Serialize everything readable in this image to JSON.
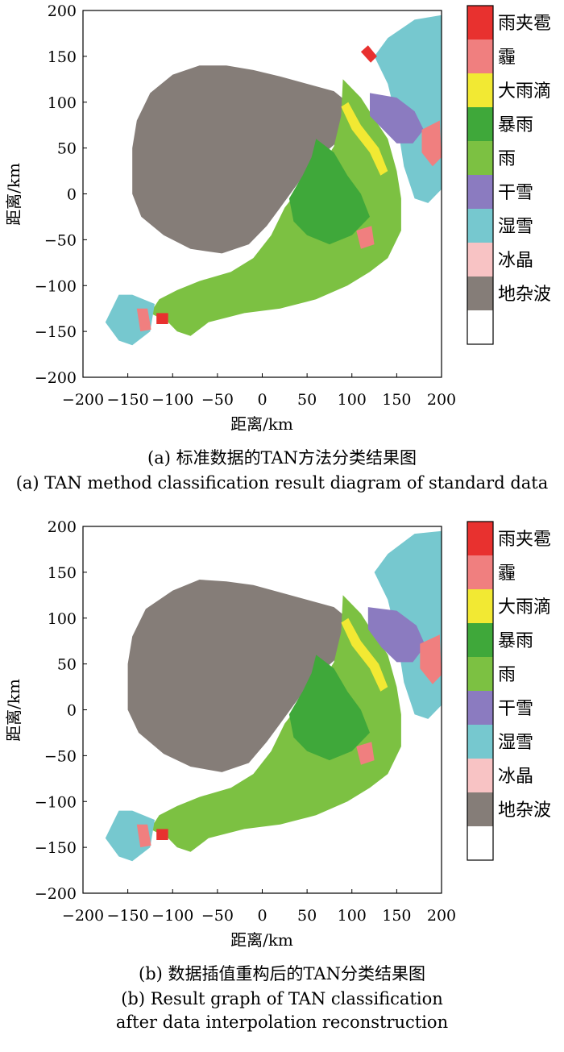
{
  "legend": {
    "items": [
      {
        "label": "雨夹雹",
        "color": "#e8312f"
      },
      {
        "label": "霾",
        "color": "#f07f7f"
      },
      {
        "label": "大雨滴",
        "color": "#f2e933"
      },
      {
        "label": "暴雨",
        "color": "#3fa83a"
      },
      {
        "label": "雨",
        "color": "#7cc142"
      },
      {
        "label": "干雪",
        "color": "#8b7bc0"
      },
      {
        "label": "湿雪",
        "color": "#76c8cf"
      },
      {
        "label": "冰晶",
        "color": "#f8c3c4"
      },
      {
        "label": "地杂波",
        "color": "#857d78"
      },
      {
        "label": "",
        "color": "#ffffff"
      }
    ]
  },
  "chart_data": [
    {
      "type": "heatmap",
      "panel": "a",
      "title": "",
      "xlabel": "距离/km",
      "ylabel": "距离/km",
      "xlim": [
        -200,
        200
      ],
      "ylim": [
        -200,
        200
      ],
      "xticks": [
        "−200",
        "−150",
        "−100",
        "−50",
        "0",
        "50",
        "100",
        "150",
        "200"
      ],
      "yticks": [
        "200",
        "150",
        "100",
        "50",
        "0",
        "−50",
        "−100",
        "−150",
        "−200"
      ],
      "regions": [
        {
          "class": "地杂波",
          "polygon": [
            [
              -145,
              50
            ],
            [
              -140,
              80
            ],
            [
              -125,
              110
            ],
            [
              -100,
              130
            ],
            [
              -70,
              140
            ],
            [
              -40,
              140
            ],
            [
              -10,
              135
            ],
            [
              20,
              128
            ],
            [
              50,
              120
            ],
            [
              80,
              112
            ],
            [
              95,
              100
            ],
            [
              100,
              85
            ],
            [
              90,
              62
            ],
            [
              70,
              45
            ],
            [
              50,
              25
            ],
            [
              35,
              5
            ],
            [
              20,
              -15
            ],
            [
              5,
              -35
            ],
            [
              -15,
              -55
            ],
            [
              -45,
              -65
            ],
            [
              -80,
              -60
            ],
            [
              -110,
              -45
            ],
            [
              -135,
              -25
            ],
            [
              -145,
              0
            ]
          ]
        },
        {
          "class": "雨",
          "polygon": [
            [
              90,
              125
            ],
            [
              110,
              105
            ],
            [
              125,
              82
            ],
            [
              140,
              60
            ],
            [
              150,
              25
            ],
            [
              155,
              -5
            ],
            [
              155,
              -40
            ],
            [
              140,
              -70
            ],
            [
              120,
              -85
            ],
            [
              95,
              -100
            ],
            [
              60,
              -115
            ],
            [
              20,
              -125
            ],
            [
              -20,
              -130
            ],
            [
              -60,
              -140
            ],
            [
              -80,
              -155
            ],
            [
              -95,
              -150
            ],
            [
              -105,
              -140
            ],
            [
              -125,
              -130
            ],
            [
              -115,
              -115
            ],
            [
              -95,
              -105
            ],
            [
              -70,
              -95
            ],
            [
              -35,
              -85
            ],
            [
              -10,
              -70
            ],
            [
              10,
              -45
            ],
            [
              25,
              -15
            ],
            [
              45,
              10
            ],
            [
              65,
              28
            ],
            [
              80,
              52
            ],
            [
              88,
              85
            ]
          ]
        },
        {
          "class": "暴雨",
          "polygon": [
            [
              60,
              60
            ],
            [
              80,
              45
            ],
            [
              95,
              20
            ],
            [
              110,
              0
            ],
            [
              120,
              -25
            ],
            [
              100,
              -45
            ],
            [
              75,
              -55
            ],
            [
              50,
              -45
            ],
            [
              35,
              -30
            ],
            [
              30,
              -5
            ],
            [
              45,
              20
            ],
            [
              55,
              40
            ]
          ]
        },
        {
          "class": "湿雪",
          "polygon": [
            [
              140,
              170
            ],
            [
              170,
              190
            ],
            [
              200,
              195
            ],
            [
              200,
              5
            ],
            [
              185,
              -10
            ],
            [
              170,
              -5
            ],
            [
              158,
              30
            ],
            [
              150,
              80
            ],
            [
              140,
              120
            ],
            [
              125,
              150
            ]
          ]
        },
        {
          "class": "干雪",
          "polygon": [
            [
              120,
              110
            ],
            [
              150,
              105
            ],
            [
              170,
              90
            ],
            [
              180,
              70
            ],
            [
              168,
              55
            ],
            [
              150,
              55
            ],
            [
              135,
              70
            ],
            [
              120,
              85
            ]
          ]
        },
        {
          "class": "霾",
          "polygon": [
            [
              178,
              70
            ],
            [
              198,
              80
            ],
            [
              200,
              40
            ],
            [
              190,
              30
            ],
            [
              178,
              45
            ]
          ]
        },
        {
          "class": "大雨滴",
          "polygon": [
            [
              88,
              95
            ],
            [
              96,
              100
            ],
            [
              110,
              75
            ],
            [
              130,
              50
            ],
            [
              140,
              25
            ],
            [
              132,
              20
            ],
            [
              120,
              45
            ],
            [
              100,
              70
            ]
          ]
        },
        {
          "class": "雨夹雹",
          "polygon": [
            [
              110,
              155
            ],
            [
              118,
              162
            ],
            [
              128,
              150
            ],
            [
              121,
              143
            ]
          ]
        },
        {
          "class": "湿雪",
          "polygon": [
            [
              -175,
              -140
            ],
            [
              -160,
              -110
            ],
            [
              -145,
              -110
            ],
            [
              -120,
              -120
            ],
            [
              -125,
              -150
            ],
            [
              -145,
              -165
            ],
            [
              -160,
              -160
            ]
          ]
        },
        {
          "class": "霾",
          "polygon": [
            [
              -140,
              -125
            ],
            [
              -128,
              -125
            ],
            [
              -124,
              -148
            ],
            [
              -136,
              -150
            ]
          ]
        },
        {
          "class": "雨夹雹",
          "polygon": [
            [
              -118,
              -130
            ],
            [
              -105,
              -130
            ],
            [
              -105,
              -142
            ],
            [
              -118,
              -142
            ]
          ]
        },
        {
          "class": "霾",
          "polygon": [
            [
              105,
              -40
            ],
            [
              122,
              -35
            ],
            [
              125,
              -55
            ],
            [
              110,
              -60
            ]
          ]
        }
      ]
    },
    {
      "type": "heatmap",
      "panel": "b",
      "title": "",
      "xlabel": "距离/km",
      "ylabel": "距离/km",
      "xlim": [
        -200,
        200
      ],
      "ylim": [
        -200,
        200
      ],
      "xticks": [
        "−200",
        "−150",
        "−100",
        "−50",
        "0",
        "50",
        "100",
        "150",
        "200"
      ],
      "yticks": [
        "200",
        "150",
        "100",
        "50",
        "0",
        "−50",
        "−100",
        "−150",
        "−200"
      ],
      "regions": [
        {
          "class": "地杂波",
          "polygon": [
            [
              -150,
              50
            ],
            [
              -145,
              80
            ],
            [
              -130,
              110
            ],
            [
              -100,
              130
            ],
            [
              -70,
              142
            ],
            [
              -40,
              140
            ],
            [
              -10,
              136
            ],
            [
              20,
              128
            ],
            [
              50,
              120
            ],
            [
              80,
              112
            ],
            [
              95,
              100
            ],
            [
              100,
              85
            ],
            [
              90,
              62
            ],
            [
              70,
              45
            ],
            [
              50,
              25
            ],
            [
              35,
              5
            ],
            [
              20,
              -15
            ],
            [
              5,
              -35
            ],
            [
              -15,
              -58
            ],
            [
              -45,
              -68
            ],
            [
              -80,
              -62
            ],
            [
              -110,
              -48
            ],
            [
              -138,
              -25
            ],
            [
              -150,
              0
            ]
          ]
        },
        {
          "class": "雨",
          "polygon": [
            [
              90,
              125
            ],
            [
              110,
              105
            ],
            [
              125,
              82
            ],
            [
              140,
              60
            ],
            [
              150,
              25
            ],
            [
              155,
              -5
            ],
            [
              155,
              -40
            ],
            [
              140,
              -70
            ],
            [
              120,
              -85
            ],
            [
              95,
              -100
            ],
            [
              60,
              -115
            ],
            [
              20,
              -125
            ],
            [
              -20,
              -130
            ],
            [
              -60,
              -140
            ],
            [
              -80,
              -155
            ],
            [
              -95,
              -150
            ],
            [
              -105,
              -140
            ],
            [
              -125,
              -130
            ],
            [
              -115,
              -115
            ],
            [
              -95,
              -105
            ],
            [
              -70,
              -95
            ],
            [
              -35,
              -85
            ],
            [
              -10,
              -70
            ],
            [
              10,
              -45
            ],
            [
              25,
              -15
            ],
            [
              45,
              10
            ],
            [
              65,
              28
            ],
            [
              80,
              52
            ],
            [
              88,
              85
            ]
          ]
        },
        {
          "class": "暴雨",
          "polygon": [
            [
              60,
              60
            ],
            [
              80,
              45
            ],
            [
              95,
              20
            ],
            [
              110,
              0
            ],
            [
              120,
              -25
            ],
            [
              100,
              -45
            ],
            [
              75,
              -55
            ],
            [
              50,
              -45
            ],
            [
              35,
              -30
            ],
            [
              30,
              -5
            ],
            [
              45,
              20
            ],
            [
              55,
              40
            ]
          ]
        },
        {
          "class": "湿雪",
          "polygon": [
            [
              140,
              170
            ],
            [
              170,
              192
            ],
            [
              200,
              195
            ],
            [
              200,
              5
            ],
            [
              185,
              -10
            ],
            [
              170,
              -5
            ],
            [
              158,
              30
            ],
            [
              150,
              80
            ],
            [
              140,
              120
            ],
            [
              125,
              150
            ]
          ]
        },
        {
          "class": "干雪",
          "polygon": [
            [
              118,
              112
            ],
            [
              150,
              108
            ],
            [
              172,
              92
            ],
            [
              182,
              70
            ],
            [
              168,
              52
            ],
            [
              150,
              52
            ],
            [
              133,
              68
            ],
            [
              118,
              88
            ]
          ]
        },
        {
          "class": "霾",
          "polygon": [
            [
              176,
              72
            ],
            [
              198,
              82
            ],
            [
              200,
              38
            ],
            [
              190,
              28
            ],
            [
              176,
              45
            ]
          ]
        },
        {
          "class": "大雨滴",
          "polygon": [
            [
              88,
              95
            ],
            [
              96,
              100
            ],
            [
              110,
              75
            ],
            [
              130,
              50
            ],
            [
              140,
              25
            ],
            [
              132,
              20
            ],
            [
              120,
              45
            ],
            [
              100,
              70
            ]
          ]
        },
        {
          "class": "湿雪",
          "polygon": [
            [
              -175,
              -140
            ],
            [
              -160,
              -110
            ],
            [
              -145,
              -110
            ],
            [
              -120,
              -120
            ],
            [
              -125,
              -150
            ],
            [
              -145,
              -165
            ],
            [
              -160,
              -160
            ]
          ]
        },
        {
          "class": "霾",
          "polygon": [
            [
              -140,
              -125
            ],
            [
              -128,
              -125
            ],
            [
              -124,
              -148
            ],
            [
              -136,
              -150
            ]
          ]
        },
        {
          "class": "雨夹雹",
          "polygon": [
            [
              -118,
              -130
            ],
            [
              -105,
              -130
            ],
            [
              -105,
              -142
            ],
            [
              -118,
              -142
            ]
          ]
        },
        {
          "class": "霾",
          "polygon": [
            [
              105,
              -40
            ],
            [
              122,
              -35
            ],
            [
              125,
              -55
            ],
            [
              110,
              -60
            ]
          ]
        }
      ]
    }
  ],
  "captions": {
    "a_cn": "(a) 标准数据的TAN方法分类结果图",
    "a_en": "(a) TAN method classification result diagram of standard data",
    "b_cn": "(b) 数据插值重构后的TAN分类结果图",
    "b_en1": "(b) Result graph of TAN classification",
    "b_en2": "after data interpolation reconstruction"
  }
}
